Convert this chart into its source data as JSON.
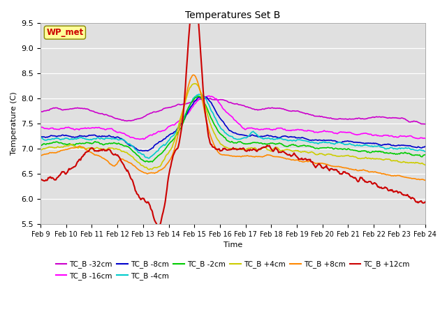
{
  "title": "Temperatures Set B",
  "xlabel": "Time",
  "ylabel": "Temperature (C)",
  "ylim": [
    5.5,
    9.5
  ],
  "yticks": [
    5.5,
    6.0,
    6.5,
    7.0,
    7.5,
    8.0,
    8.5,
    9.0,
    9.5
  ],
  "xtick_labels": [
    "Feb 9",
    "Feb 10",
    "Feb 11",
    "Feb 12",
    "Feb 13",
    "Feb 14",
    "Feb 15",
    "Feb 16",
    "Feb 17",
    "Feb 18",
    "Feb 19",
    "Feb 20",
    "Feb 21",
    "Feb 22",
    "Feb 23",
    "Feb 24"
  ],
  "series_order": [
    "TC_B -32cm",
    "TC_B -16cm",
    "TC_B -8cm",
    "TC_B -4cm",
    "TC_B -2cm",
    "TC_B +4cm",
    "TC_B +8cm",
    "TC_B +12cm"
  ],
  "series_colors": [
    "#cc00cc",
    "#ff00ff",
    "#0000cc",
    "#00cccc",
    "#00cc00",
    "#cccc00",
    "#ff8800",
    "#cc0000"
  ],
  "series_linewidths": [
    1.2,
    1.2,
    1.2,
    1.2,
    1.2,
    1.2,
    1.2,
    1.5
  ],
  "legend_label": "WP_met",
  "legend_text_color": "#cc0000",
  "legend_box_facecolor": "#ffff99",
  "legend_box_edgecolor": "#888800",
  "plot_bg_color": "#e0e0e0",
  "fig_bg_color": "#ffffff",
  "grid_color": "#ffffff",
  "n_points": 500
}
